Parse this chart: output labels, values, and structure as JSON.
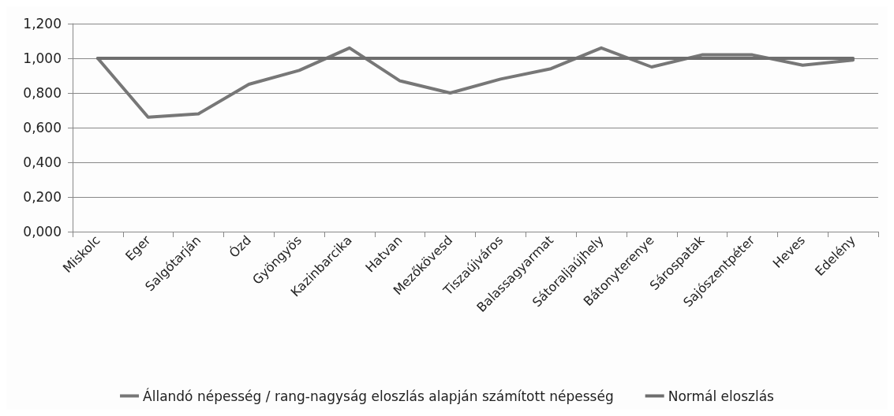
{
  "chart_data": {
    "type": "line",
    "categories": [
      "Miskolc",
      "Eger",
      "Salgótarján",
      "Ózd",
      "Gyöngyös",
      "Kazinbarcika",
      "Hatvan",
      "Mezőkövesd",
      "Tiszaújváros",
      "Balassagyarmat",
      "Sátoraljaújhely",
      "Bátonyterenye",
      "Sárospatak",
      "Sajószentpéter",
      "Heves",
      "Edelény"
    ],
    "series": [
      {
        "name": "Állandó népesség / rang-nagyság eloszlás alapján számított népesség",
        "color": "#777777",
        "values": [
          1.0,
          0.66,
          0.68,
          0.85,
          0.93,
          1.06,
          0.87,
          0.8,
          0.88,
          0.94,
          1.06,
          0.95,
          1.02,
          1.02,
          0.96,
          0.99
        ]
      },
      {
        "name": "Normál eloszlás",
        "color": "#6e6e6e",
        "values": [
          1,
          1,
          1,
          1,
          1,
          1,
          1,
          1,
          1,
          1,
          1,
          1,
          1,
          1,
          1,
          1
        ]
      }
    ],
    "ylim": [
      0,
      1.2
    ],
    "yticks": [
      {
        "value": 0,
        "label": "0,000"
      },
      {
        "value": 0.2,
        "label": "0,200"
      },
      {
        "value": 0.4,
        "label": "0,400"
      },
      {
        "value": 0.6,
        "label": "0,600"
      },
      {
        "value": 0.8,
        "label": "0,800"
      },
      {
        "value": 1,
        "label": "1,000"
      },
      {
        "value": 1.2,
        "label": "1,200"
      }
    ],
    "grid": "y",
    "legend": "bottom",
    "marker": "none",
    "line_style": "solid"
  }
}
